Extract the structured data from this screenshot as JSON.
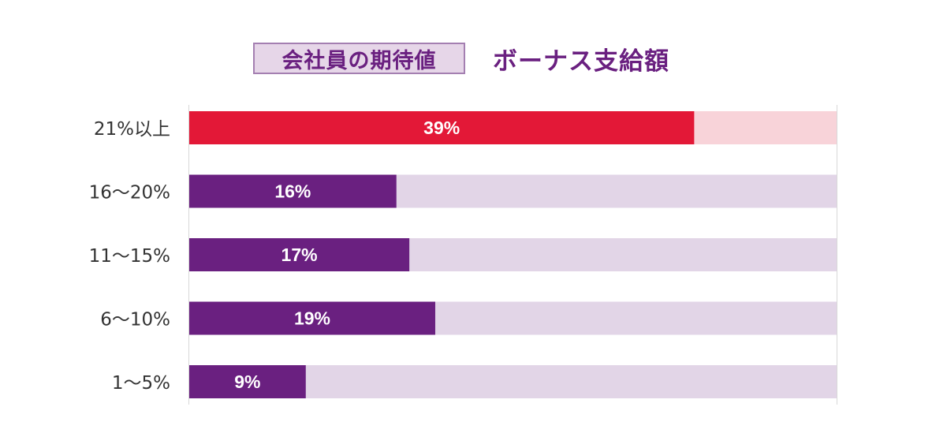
{
  "header": {
    "subtitle": "会社員の期待値",
    "title": "ボーナス支給額"
  },
  "chart_data": {
    "type": "bar",
    "orientation": "horizontal",
    "stacked_background": true,
    "categories": [
      "21%以上",
      "16〜20%",
      "11〜15%",
      "6〜10%",
      "1〜5%"
    ],
    "values": [
      39,
      16,
      17,
      19,
      9
    ],
    "value_labels": [
      "39%",
      "16%",
      "17%",
      "19%",
      "9%"
    ],
    "xlim": [
      0,
      50
    ],
    "highlight_index": 0,
    "colors": {
      "highlight": "#e31837",
      "highlight_track": "#f8d3d9",
      "bar": "#6a2080",
      "track": "#e2d5e7",
      "axis": "#d8d8d8",
      "category_text": "#333333",
      "value_text": "#ffffff"
    }
  }
}
